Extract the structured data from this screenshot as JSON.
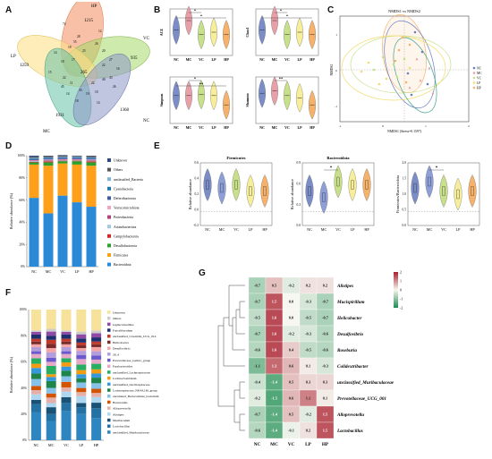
{
  "panels": {
    "a": "A",
    "b": "B",
    "c": "C",
    "d": "D",
    "e": "E",
    "f": "F",
    "g": "G"
  },
  "venn": {
    "sets": [
      {
        "name": "HP",
        "color": "#f4a582",
        "count": "1215"
      },
      {
        "name": "VC",
        "color": "#a6d96a",
        "count": "935"
      },
      {
        "name": "LP",
        "color": "#fee08b",
        "count": "1259"
      },
      {
        "name": "MC",
        "color": "#66c2a5",
        "count": "1931"
      },
      {
        "name": "NC",
        "color": "#8c96c6",
        "count": "1368"
      }
    ],
    "center": "265",
    "inner_counts": [
      "74",
      "12",
      "55",
      "26",
      "28",
      "20",
      "14",
      "18",
      "27",
      "25",
      "18",
      "17",
      "22",
      "45",
      "11",
      "14",
      "33",
      "10",
      "40",
      "19",
      "43",
      "26",
      "15",
      "22",
      "22",
      "18",
      "14",
      "16"
    ]
  },
  "alpha": {
    "groups": [
      "NC",
      "MC",
      "VC",
      "LP",
      "HP"
    ],
    "colors": [
      "#7b8dc7",
      "#e8a0a8",
      "#c8e08a",
      "#f6ee9a",
      "#f6b26b"
    ],
    "plots": [
      {
        "ylabel": "ACE",
        "sig": [
          "*",
          "*"
        ]
      },
      {
        "ylabel": "Chao1",
        "sig": [
          "*",
          "*"
        ]
      },
      {
        "ylabel": "Simpson",
        "sig": [
          "*",
          "**"
        ]
      },
      {
        "ylabel": "Shannon",
        "sig": [
          "**"
        ]
      }
    ]
  },
  "nmds": {
    "title": "NMDS1 vs NMDS2",
    "xlabel": "NMDS1 (Stress=0.1597)",
    "ylabel": "NMDS2",
    "xticks": [
      "-1",
      "0",
      "1",
      "2"
    ],
    "yticks": [
      "1",
      "0",
      "-1"
    ],
    "legend": [
      "NC",
      "MC",
      "VC",
      "LP",
      "HP"
    ]
  },
  "phylum": {
    "ylabel": "Relative abundance (%)",
    "yticks": [
      "100%",
      "80%",
      "60%",
      "40%",
      "20%",
      "0%"
    ],
    "groups": [
      "NC",
      "MC",
      "VC",
      "LP",
      "HP"
    ],
    "legend": [
      {
        "name": "Unknown",
        "color": "#2e4a7d"
      },
      {
        "name": "Others",
        "color": "#555555"
      },
      {
        "name": "unclassified_Bacteria",
        "color": "#7fb3d5"
      },
      {
        "name": "Cyanobacteria",
        "color": "#1f77b4"
      },
      {
        "name": "Deferribacterota",
        "color": "#3a5ba0"
      },
      {
        "name": "Verrucomicrobiota",
        "color": "#f1a7c2"
      },
      {
        "name": "Proteobacteria",
        "color": "#b0417a"
      },
      {
        "name": "Actinobacteriota",
        "color": "#9ecae1"
      },
      {
        "name": "Campylobacterota",
        "color": "#d62728"
      },
      {
        "name": "Desulfobacterota",
        "color": "#2ca02c"
      },
      {
        "name": "Firmicutes",
        "color": "#ff9f1a"
      },
      {
        "name": "Bacteroidota",
        "color": "#2b8ad8"
      }
    ]
  },
  "ratio": {
    "ylabel1": "Relative abundance",
    "ylabel3": "Firmicutes/Bacteroidota",
    "plots": [
      {
        "title": "Firmicutes",
        "yticks": [
          "0.6",
          "0.4",
          "0.2",
          "0.0",
          "-0.2"
        ],
        "sig": ""
      },
      {
        "title": "Bacteroidota",
        "yticks": [
          "0.9",
          "0.6",
          "0.3",
          "0.0"
        ],
        "sig": "*"
      },
      {
        "title": "",
        "yticks": [
          "2.0",
          "1.5",
          "1.0",
          "0.5",
          "0.0"
        ],
        "sig": "*"
      }
    ],
    "groups": [
      "NC",
      "MC",
      "VC",
      "LP",
      "HP"
    ]
  },
  "genus": {
    "ylabel": "Relative abundance (%)",
    "yticks": [
      "100%",
      "80%",
      "60%",
      "40%",
      "20%",
      "0%"
    ],
    "groups": [
      "NC",
      "MC",
      "VC",
      "LP",
      "HP"
    ],
    "legend": [
      {
        "name": "Unknown",
        "color": "#f7e29c"
      },
      {
        "name": "Others",
        "color": "#cccccc"
      },
      {
        "name": "Ligilactobacillus",
        "color": "#8f4aa4"
      },
      {
        "name": "Faecalibaculum",
        "color": "#1f2f6e"
      },
      {
        "name": "unclassified_Clostridia_UCG_014",
        "color": "#c0392b"
      },
      {
        "name": "Helicobacter",
        "color": "#7a2c2c"
      },
      {
        "name": "Desulfovibrio",
        "color": "#f4a6a6"
      },
      {
        "name": "28_4",
        "color": "#b39ddb"
      },
      {
        "name": "Prevotellaceae_Ga6A1_group",
        "color": "#6a5acd"
      },
      {
        "name": "Parabacteroides",
        "color": "#e7a8c8"
      },
      {
        "name": "unclassified_Lachnospiraceae",
        "color": "#27ae60"
      },
      {
        "name": "Lachnoclostridium",
        "color": "#f39c12"
      },
      {
        "name": "unclassified_Oscillospiraceae",
        "color": "#3498db"
      },
      {
        "name": "Lachnospiraceae_NK4A136_group",
        "color": "#1e8449"
      },
      {
        "name": "uncultured_Bacteroidales_bacterium",
        "color": "#85c1e9"
      },
      {
        "name": "Bacteroides",
        "color": "#d35400"
      },
      {
        "name": "Alloprevotella",
        "color": "#e6b0aa"
      },
      {
        "name": "Alistipes",
        "color": "#aed6f1"
      },
      {
        "name": "Muribaculum",
        "color": "#1a5276"
      },
      {
        "name": "Lactobacillus",
        "color": "#2471a3"
      },
      {
        "name": "unclassified_Muribaculaceae",
        "color": "#2e86c1"
      }
    ]
  },
  "heatmap": {
    "cols": [
      "NC",
      "MC",
      "VC",
      "LP",
      "HP"
    ],
    "rows": [
      {
        "name": "Alistipes",
        "values": [
          -0.7,
          0.5,
          -0.2,
          0.2,
          0.2
        ]
      },
      {
        "name": "Mucispirillum",
        "values": [
          -0.7,
          1.5,
          0.0,
          -0.3,
          -0.7
        ]
      },
      {
        "name": "Helicobacter",
        "values": [
          -0.5,
          1.6,
          0.0,
          -0.5,
          -0.7
        ]
      },
      {
        "name": "Desulfovibrio",
        "values": [
          -0.7,
          1.6,
          -0.2,
          -0.3,
          -0.6
        ]
      },
      {
        "name": "Roseburia",
        "values": [
          -0.6,
          1.6,
          0.4,
          -0.5,
          -0.6
        ]
      },
      {
        "name": "Colidextribacter",
        "values": [
          -1.1,
          1.3,
          0.6,
          0.1,
          -0.3
        ]
      },
      {
        "name": "unclassified_Muribaculaceae",
        "values": [
          -0.4,
          -1.4,
          0.5,
          0.3,
          0.3
        ]
      },
      {
        "name": "Prevotellaceae_UCG_001",
        "values": [
          -0.2,
          -1.5,
          0.6,
          1.1,
          0.1
        ]
      },
      {
        "name": "Alloprevotella",
        "values": [
          -0.7,
          -1.4,
          0.5,
          -0.2,
          1.5
        ]
      },
      {
        "name": "Lactobacillus",
        "values": [
          -0.6,
          -1.4,
          -0.1,
          0.2,
          1.5
        ]
      }
    ],
    "scale": [
      "2",
      "1",
      "0",
      "-1",
      "-2"
    ]
  }
}
